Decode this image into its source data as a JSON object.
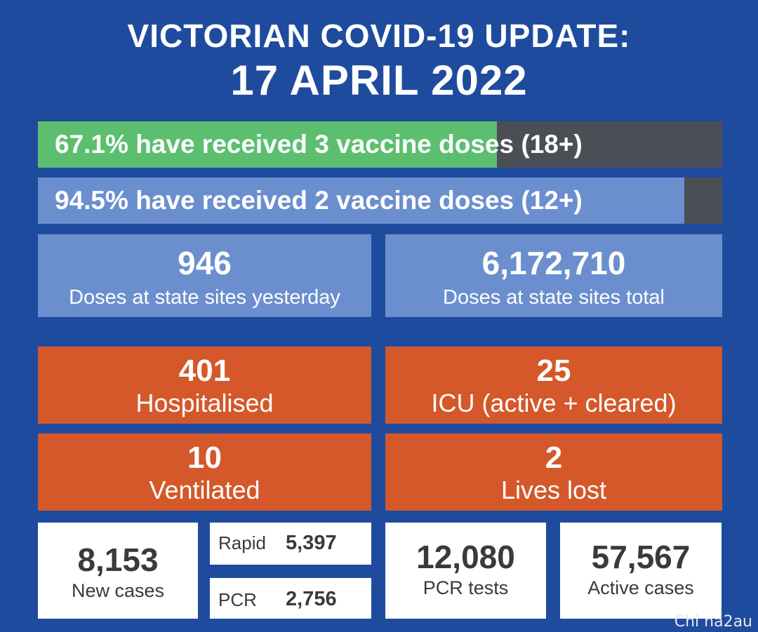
{
  "header": {
    "title": "VICTORIAN COVID-19 UPDATE:",
    "date": "17 APRIL 2022"
  },
  "vaccination": {
    "third_dose": {
      "text": "67.1% have received 3 vaccine doses (18+)",
      "percent": 67.1,
      "color": "#5cbf6f"
    },
    "second_dose": {
      "text": "94.5% have received 2 vaccine doses (12+)",
      "percent": 94.5,
      "color": "#6b8fce"
    }
  },
  "doses": {
    "yesterday": {
      "value": "946",
      "label": "Doses at state sites yesterday"
    },
    "total": {
      "value": "6,172,710",
      "label": "Doses at state sites total"
    }
  },
  "hospital": {
    "hospitalised": {
      "value": "401",
      "label": "Hospitalised"
    },
    "icu": {
      "value": "25",
      "label": "ICU (active + cleared)"
    },
    "ventilated": {
      "value": "10",
      "label": "Ventilated"
    },
    "lives_lost": {
      "value": "2",
      "label": "Lives lost"
    }
  },
  "cases": {
    "new_cases": {
      "value": "8,153",
      "label": "New cases"
    },
    "rapid": {
      "label": "Rapid",
      "value": "5,397"
    },
    "pcr": {
      "label": "PCR",
      "value": "2,756"
    },
    "pcr_tests": {
      "value": "12,080",
      "label": "PCR tests"
    },
    "active_cases": {
      "value": "57,567",
      "label": "Active cases"
    }
  },
  "watermark": "Chi na2au",
  "colors": {
    "background": "#1f4b9f",
    "orange": "#d4582a",
    "blue_panel": "#6b8fce",
    "green": "#5cbf6f",
    "bar_remainder": "#4b4f55"
  }
}
